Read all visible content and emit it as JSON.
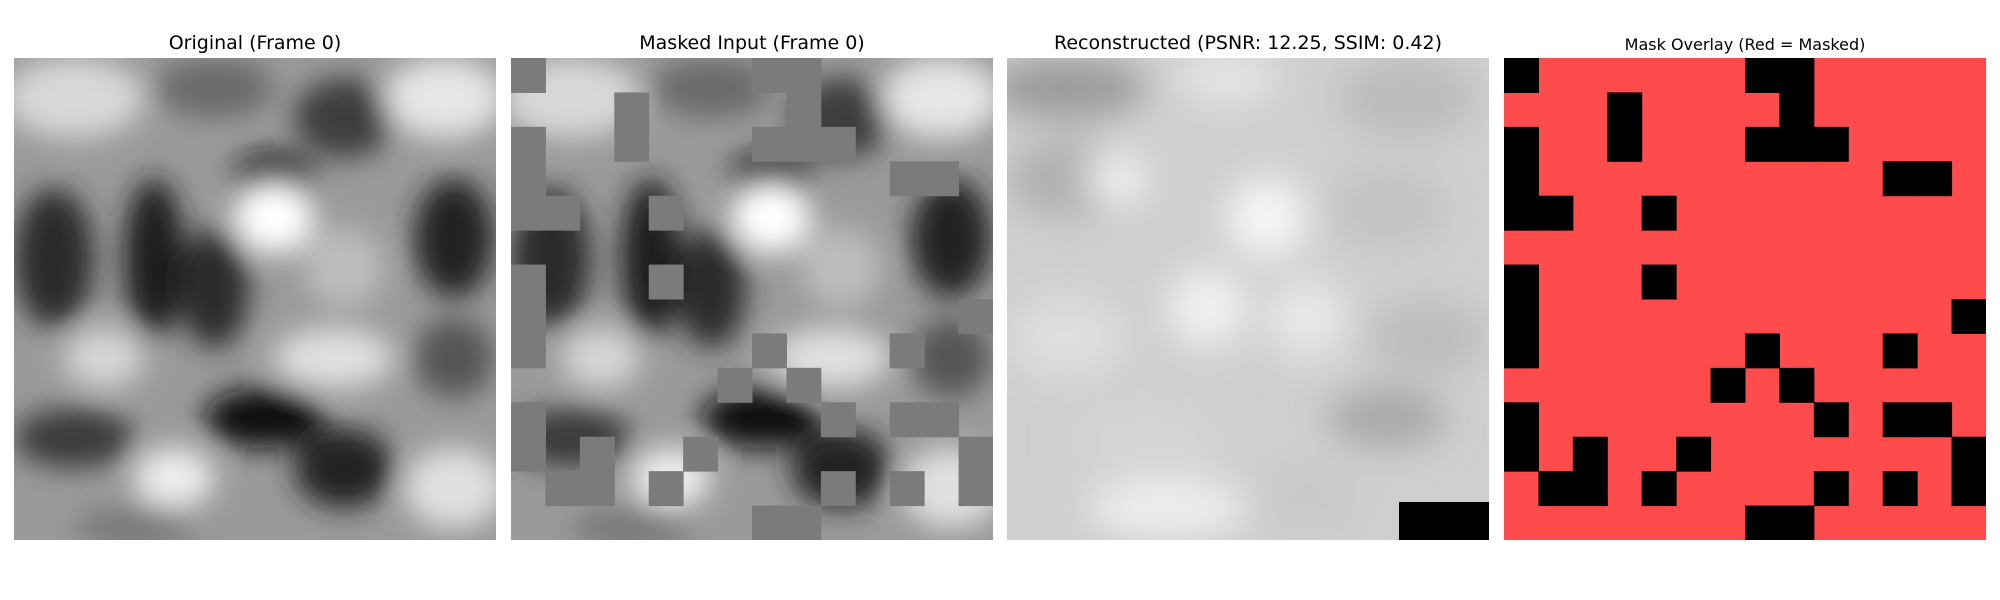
{
  "panels": [
    {
      "title": "Original (Frame 0)"
    },
    {
      "title": "Masked Input (Frame 0)"
    },
    {
      "title": "Reconstructed (PSNR: 12.25, SSIM: 0.42)"
    },
    {
      "title": "Mask Overlay (Red = Masked)"
    }
  ],
  "colors": {
    "masked_red": "#ff4b4b",
    "visible_black": "#000000",
    "masked_fill_gray": "#7b7b7b"
  },
  "grid": {
    "rows": 14,
    "cols": 14,
    "visible_patches": [
      [
        0,
        0
      ],
      [
        0,
        7
      ],
      [
        0,
        8
      ],
      [
        1,
        3
      ],
      [
        1,
        8
      ],
      [
        2,
        0
      ],
      [
        2,
        3
      ],
      [
        2,
        7
      ],
      [
        2,
        8
      ],
      [
        2,
        9
      ],
      [
        3,
        0
      ],
      [
        3,
        11
      ],
      [
        3,
        12
      ],
      [
        4,
        0
      ],
      [
        4,
        1
      ],
      [
        4,
        4
      ],
      [
        6,
        0
      ],
      [
        6,
        4
      ],
      [
        7,
        0
      ],
      [
        7,
        13
      ],
      [
        8,
        0
      ],
      [
        8,
        7
      ],
      [
        8,
        11
      ],
      [
        9,
        6
      ],
      [
        9,
        8
      ],
      [
        10,
        0
      ],
      [
        10,
        9
      ],
      [
        10,
        11
      ],
      [
        10,
        12
      ],
      [
        11,
        0
      ],
      [
        11,
        2
      ],
      [
        11,
        5
      ],
      [
        11,
        13
      ],
      [
        12,
        1
      ],
      [
        12,
        2
      ],
      [
        12,
        4
      ],
      [
        12,
        9
      ],
      [
        12,
        11
      ],
      [
        12,
        13
      ],
      [
        13,
        7
      ],
      [
        13,
        8
      ]
    ]
  }
}
